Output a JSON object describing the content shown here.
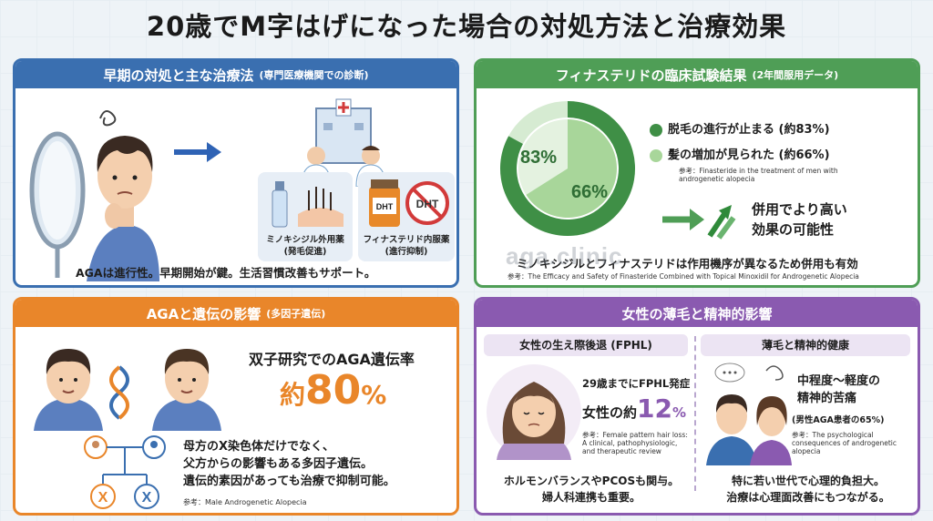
{
  "title": "20歳でM字はげになった場合の対処方法と治療効果",
  "watermark": "aga.clinic",
  "panel1": {
    "heading": "早期の対処と主な治療法",
    "heading_sub": "(専門医療機関での診断)",
    "minoxidil_label": "ミノキシジル外用薬",
    "minoxidil_sub": "(発毛促進)",
    "finasteride_label": "フィナステリド内服薬",
    "finasteride_sub": "(進行抑制)",
    "dht_bottle": "DHT",
    "dht_sign": "DHT",
    "caption": "AGAは進行性。早期開始が鍵。生活習慣改善もサポート。"
  },
  "panel2": {
    "heading": "フィナステリドの臨床試験結果",
    "heading_sub": "(2年間服用データ)",
    "legend": [
      {
        "label": "脱毛の進行が止まる (約83%)",
        "color": "#3f8f46"
      },
      {
        "label": "髪の増加が見られた (約66%)",
        "color": "#a8d69a"
      }
    ],
    "ref1": "参考：Finasteride in the treatment of men with androgenetic alopecia",
    "combo_line1": "併用でより高い",
    "combo_line2": "効果の可能性",
    "caption": "ミノキシジルとフィナステリドは作用機序が異なるため併用も有効",
    "ref2": "参考：The Efficacy and Safety of Finasteride Combined with Topical Minoxidil for Androgenetic Alopecia"
  },
  "chart_data": {
    "type": "pie",
    "series": [
      {
        "name": "脱毛の進行が止まる",
        "value": 83,
        "label": "83%",
        "color": "#3f8f46"
      },
      {
        "name": "髪の増加が見られた",
        "value": 66,
        "label": "66%",
        "color": "#a8d69a"
      }
    ]
  },
  "panel3": {
    "heading": "AGAと遺伝の影響",
    "heading_sub": "(多因子遺伝)",
    "stat_label": "双子研究でのAGA遺伝率",
    "stat_prefix": "約",
    "stat_value": "80",
    "stat_unit": "%",
    "x1": "X",
    "x2": "X",
    "text1": "母方のX染色体だけでなく、",
    "text2": "父方からの影響もある多因子遺伝。",
    "text3": "遺伝的素因があっても治療で抑制可能。",
    "ref": "参考：Male Androgenetic Alopecia"
  },
  "panel4": {
    "heading": "女性の薄毛と精神的影響",
    "left_title": "女性の生え際後退 (FPHL)",
    "onset": "29歳までにFPHL発症",
    "rate_prefix": "女性の約",
    "rate_value": "12",
    "rate_unit": "%",
    "ref_left": "参考：Female pattern hair loss: A clinical, pathophysiologic, and therapeutic review",
    "caption_left1": "ホルモンバランスやPCOSも関与。",
    "caption_left2": "婦人科連携も重要。",
    "right_title": "薄毛と精神的健康",
    "stress1": "中程度〜軽度の",
    "stress2": "精神的苦痛",
    "stress3": "(男性AGA患者の65%)",
    "ref_right": "参考：The psychological consequences of androgenetic alopecia",
    "caption_right1": "特に若い世代で心理的負担大。",
    "caption_right2": "治療は心理面改善にもつながる。"
  }
}
